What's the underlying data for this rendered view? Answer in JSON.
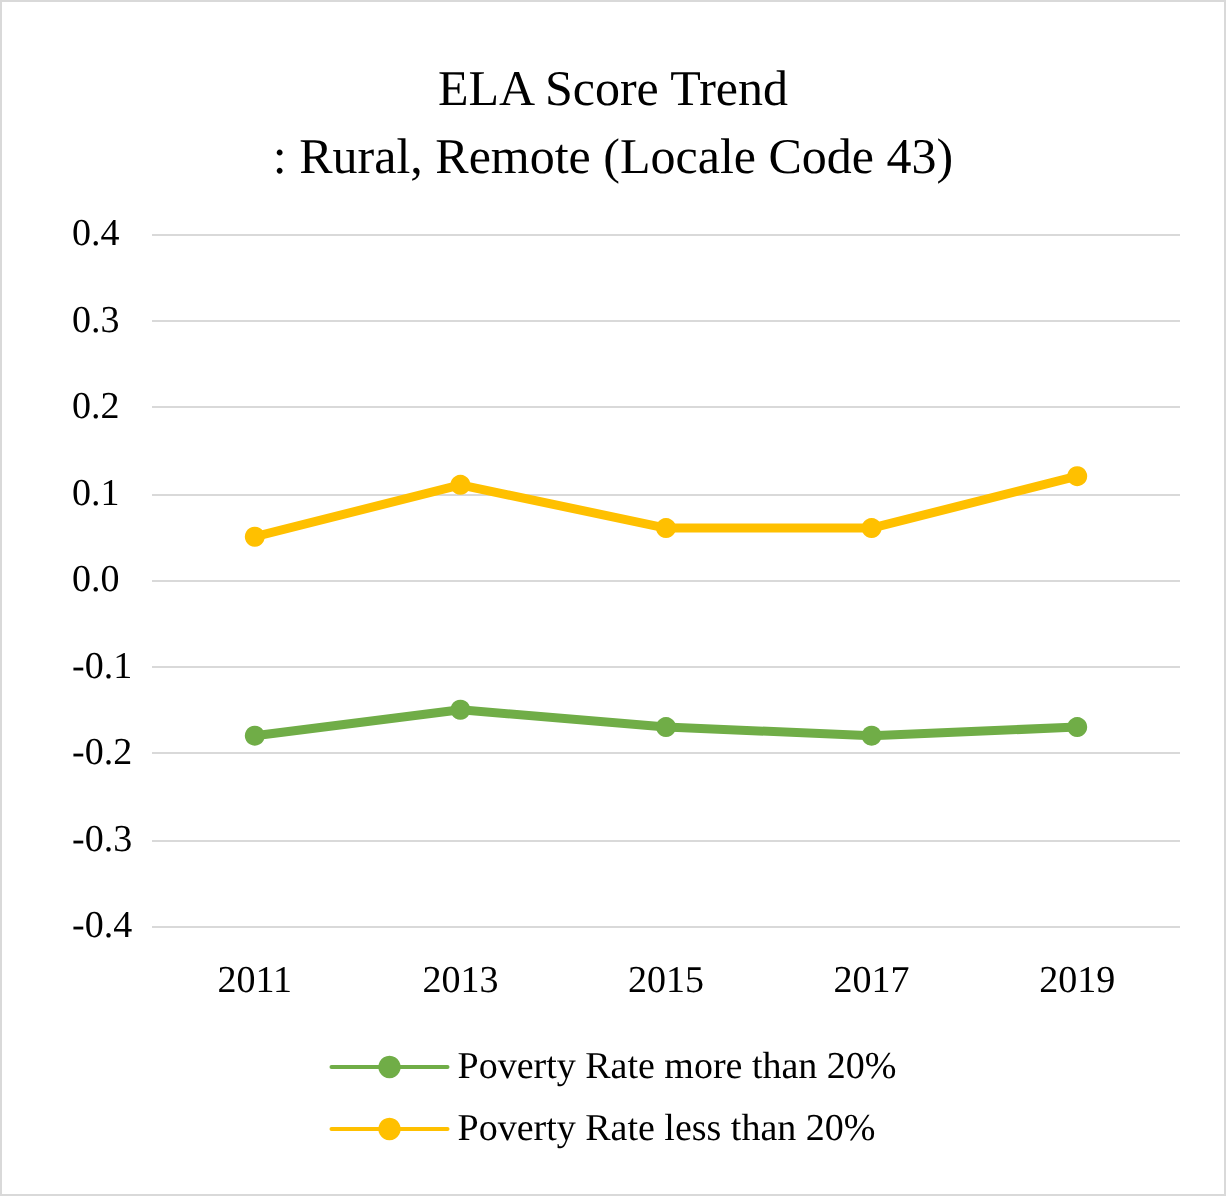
{
  "chart_data": {
    "type": "line",
    "title": "ELA Score Trend\n: Rural, Remote (Locale Code 43)",
    "categories": [
      "2011",
      "2013",
      "2015",
      "2017",
      "2019"
    ],
    "series": [
      {
        "name": "Poverty Rate more than 20%",
        "color": "#70ad47",
        "values": [
          -0.18,
          -0.15,
          -0.17,
          -0.18,
          -0.17
        ]
      },
      {
        "name": "Poverty Rate less than 20%",
        "color": "#ffc000",
        "values": [
          0.05,
          0.11,
          0.06,
          0.06,
          0.12
        ]
      }
    ],
    "ylim": [
      -0.4,
      0.4
    ],
    "yticks": [
      -0.4,
      -0.3,
      -0.2,
      -0.1,
      {
        "value": 0,
        "label": "0.0"
      },
      0.1,
      0.2,
      0.3,
      0.4
    ],
    "grid": "y",
    "legend": "bottom",
    "marker": "circle",
    "line_style": "solid"
  }
}
